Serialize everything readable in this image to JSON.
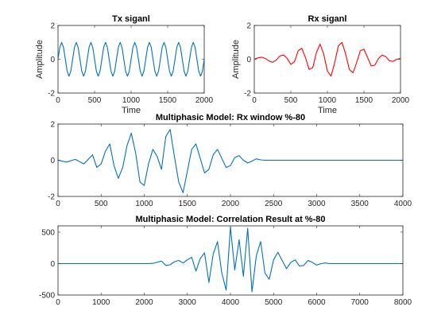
{
  "chart_data": [
    {
      "id": "tx",
      "type": "line",
      "title": "Tx siganl",
      "xlabel": "Time",
      "ylabel": "Amplitude",
      "xlim": [
        0,
        2000
      ],
      "ylim": [
        -2,
        2
      ],
      "xticks": [
        0,
        500,
        1000,
        1500,
        2000
      ],
      "yticks": [
        -2,
        0,
        2
      ],
      "grid": false,
      "series": [
        {
          "color": "#0072BD",
          "x": [
            0,
            25,
            50,
            75,
            100,
            125,
            150,
            175,
            200,
            225,
            250,
            275,
            300,
            325,
            350,
            375,
            400,
            425,
            450,
            475,
            500,
            525,
            550,
            575,
            600,
            625,
            650,
            675,
            700,
            725,
            750,
            775,
            800,
            825,
            850,
            875,
            900,
            925,
            950,
            975,
            1000,
            1025,
            1050,
            1075,
            1100,
            1125,
            1150,
            1175,
            1200,
            1225,
            1250,
            1275,
            1300,
            1325,
            1350,
            1375,
            1400,
            1425,
            1450,
            1475,
            1500,
            1525,
            1550,
            1575,
            1600,
            1625,
            1650,
            1675,
            1700,
            1725,
            1750,
            1775,
            1800,
            1825,
            1850,
            1875,
            1900,
            1925,
            1950,
            1975,
            2000
          ],
          "values": [
            0.0,
            0.71,
            1.0,
            0.71,
            0.0,
            -0.71,
            -1.0,
            -0.71,
            0.0,
            0.71,
            1.0,
            0.71,
            0.0,
            -0.71,
            -1.0,
            -0.71,
            0.0,
            0.71,
            1.0,
            0.71,
            0.0,
            -0.71,
            -1.0,
            -0.71,
            0.0,
            0.71,
            1.0,
            0.71,
            0.0,
            -0.71,
            -1.0,
            -0.71,
            0.0,
            0.71,
            1.0,
            0.71,
            0.0,
            -0.71,
            -1.0,
            -0.71,
            0.0,
            0.71,
            1.0,
            0.71,
            0.0,
            -0.71,
            -1.0,
            -0.71,
            0.0,
            0.71,
            1.0,
            0.71,
            0.0,
            -0.71,
            -1.0,
            -0.71,
            0.0,
            0.71,
            1.0,
            0.71,
            0.0,
            -0.71,
            -1.0,
            -0.71,
            0.0,
            0.71,
            1.0,
            0.71,
            0.0,
            -0.71,
            -1.0,
            -0.71,
            0.0,
            0.71,
            1.0,
            0.71,
            0.0,
            -0.71,
            -1.0,
            -0.71,
            0.0
          ]
        }
      ]
    },
    {
      "id": "rx",
      "type": "line",
      "title": "Rx siganl",
      "xlabel": "Time",
      "ylabel": "Amplitude",
      "xlim": [
        0,
        2000
      ],
      "ylim": [
        -2,
        2
      ],
      "xticks": [
        0,
        500,
        1000,
        1500,
        2000
      ],
      "yticks": [
        -2,
        0,
        2
      ],
      "grid": false,
      "series": [
        {
          "color": "#FF0000",
          "x": [
            0,
            50,
            100,
            150,
            200,
            250,
            300,
            350,
            400,
            450,
            500,
            550,
            600,
            650,
            700,
            750,
            800,
            850,
            900,
            950,
            1000,
            1050,
            1100,
            1150,
            1200,
            1250,
            1300,
            1350,
            1400,
            1450,
            1500,
            1550,
            1600,
            1650,
            1700,
            1750,
            1800,
            1850,
            1900,
            1950,
            2000
          ],
          "values": [
            0.0,
            0.08,
            0.12,
            0.05,
            -0.1,
            -0.18,
            -0.05,
            0.2,
            0.25,
            0.05,
            -0.3,
            -0.15,
            0.5,
            0.65,
            0.1,
            -0.6,
            -0.5,
            0.4,
            0.9,
            0.3,
            -0.7,
            -1.0,
            -0.2,
            0.8,
            1.0,
            0.3,
            -0.6,
            -0.8,
            -0.2,
            0.5,
            0.6,
            0.1,
            -0.4,
            -0.35,
            0.05,
            0.25,
            0.15,
            -0.1,
            -0.12,
            0.0,
            0.05
          ]
        }
      ]
    },
    {
      "id": "window",
      "type": "line",
      "title": "Multiphasic Model: Rx window %-80",
      "xlabel": "",
      "ylabel": "",
      "xlim": [
        0,
        4000
      ],
      "ylim": [
        -2,
        2
      ],
      "xticks": [
        0,
        500,
        1000,
        1500,
        2000,
        2500,
        3000,
        3500,
        4000
      ],
      "yticks": [
        -2,
        0,
        2
      ],
      "grid": false,
      "series": [
        {
          "color": "#0072BD",
          "x": [
            0,
            100,
            200,
            300,
            400,
            450,
            500,
            550,
            600,
            650,
            700,
            750,
            800,
            850,
            900,
            950,
            1000,
            1050,
            1100,
            1150,
            1200,
            1250,
            1300,
            1350,
            1400,
            1450,
            1500,
            1550,
            1600,
            1650,
            1700,
            1750,
            1800,
            1850,
            1900,
            1950,
            2000,
            2050,
            2100,
            2150,
            2200,
            2250,
            2300,
            2350,
            2400,
            2500,
            3000,
            3500,
            4000
          ],
          "values": [
            0.0,
            -0.1,
            0.05,
            -0.2,
            0.3,
            -0.4,
            -0.2,
            0.5,
            0.9,
            -0.3,
            -1.0,
            -0.4,
            0.8,
            1.5,
            0.4,
            -1.2,
            -1.4,
            -0.2,
            0.6,
            0.2,
            -0.5,
            1.3,
            1.7,
            0.2,
            -1.2,
            -1.8,
            -0.6,
            0.6,
            0.9,
            0.1,
            -0.7,
            -0.5,
            0.3,
            0.6,
            0.1,
            -0.4,
            -0.3,
            0.15,
            0.25,
            0.0,
            -0.15,
            -0.05,
            0.08,
            0.02,
            0.0,
            0.0,
            0.0,
            0.0,
            0.0
          ]
        }
      ]
    },
    {
      "id": "corr",
      "type": "line",
      "title": "Multiphasic Model: Correlation Result at %-80",
      "xlabel": "",
      "ylabel": "",
      "xlim": [
        0,
        8000
      ],
      "ylim": [
        -500,
        600
      ],
      "xticks": [
        0,
        1000,
        2000,
        3000,
        4000,
        5000,
        6000,
        7000,
        8000
      ],
      "yticks": [
        -500,
        0,
        500
      ],
      "grid": false,
      "series": [
        {
          "color": "#0072BD",
          "x": [
            0,
            1000,
            2000,
            2100,
            2200,
            2300,
            2400,
            2500,
            2600,
            2700,
            2800,
            2900,
            3000,
            3100,
            3200,
            3300,
            3400,
            3500,
            3600,
            3700,
            3800,
            3900,
            4000,
            4100,
            4200,
            4300,
            4400,
            4500,
            4600,
            4700,
            4800,
            4900,
            5000,
            5100,
            5200,
            5300,
            5400,
            5500,
            5600,
            5700,
            5800,
            5900,
            6000,
            6100,
            6200,
            6300,
            6400,
            7000,
            8000
          ],
          "values": [
            0,
            0,
            0,
            0,
            5,
            20,
            40,
            -30,
            -20,
            30,
            50,
            10,
            60,
            100,
            -120,
            80,
            170,
            -300,
            150,
            350,
            -150,
            -420,
            580,
            -100,
            380,
            -200,
            560,
            -450,
            120,
            350,
            -150,
            -250,
            60,
            180,
            50,
            -80,
            20,
            60,
            -40,
            -30,
            50,
            20,
            -25,
            0,
            10,
            0,
            0,
            0,
            0
          ]
        }
      ]
    }
  ]
}
